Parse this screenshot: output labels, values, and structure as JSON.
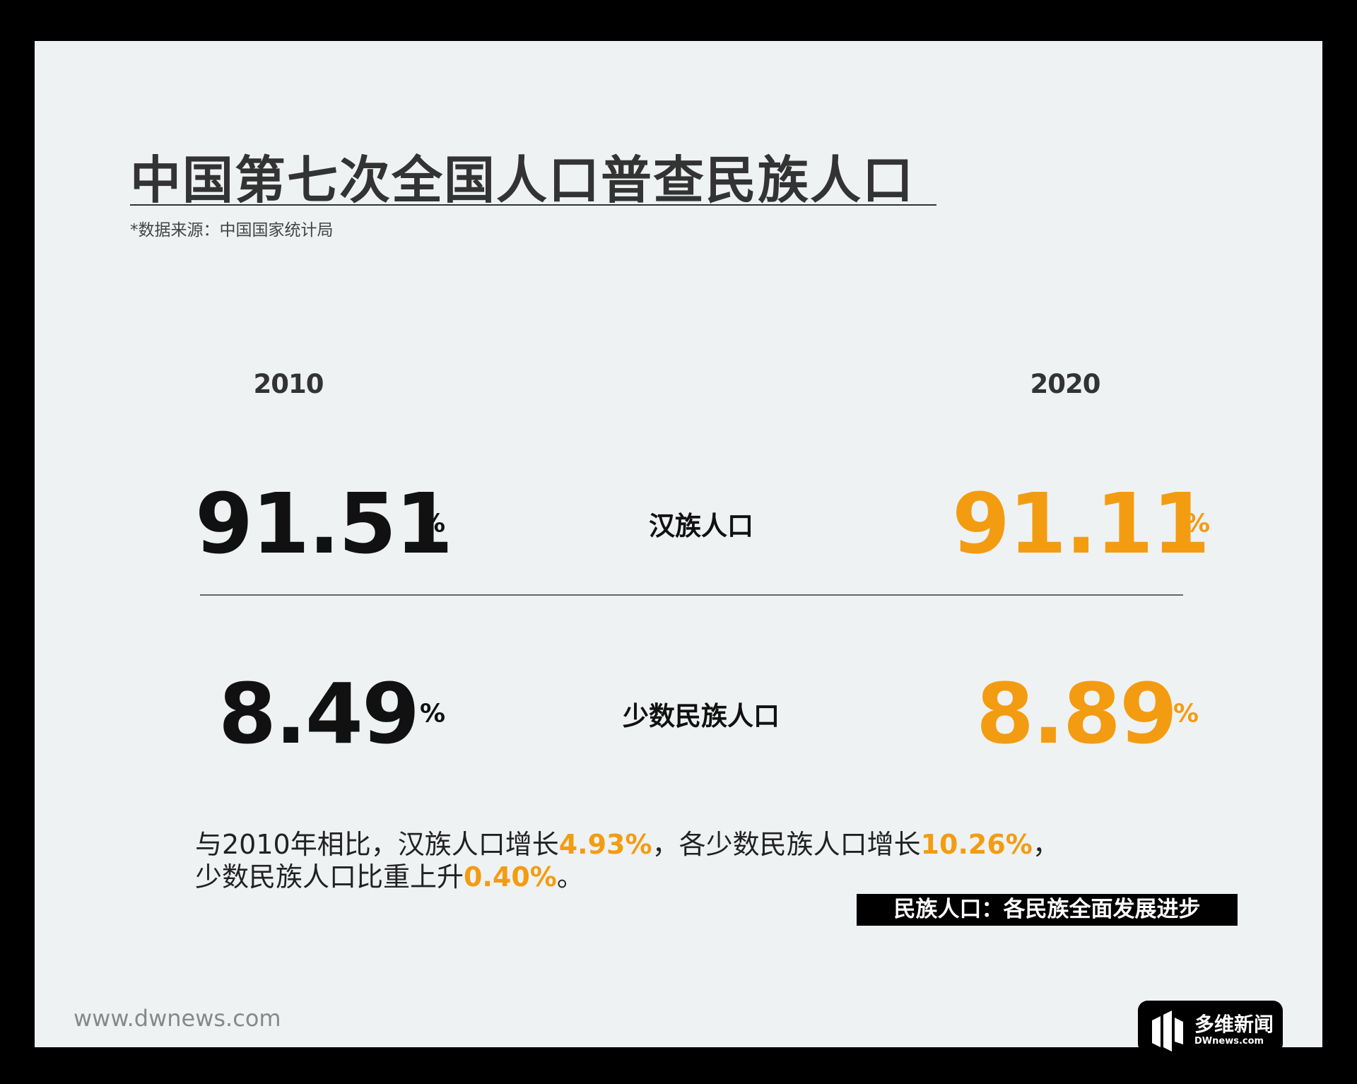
{
  "header": {
    "title": "中国第七次全国人口普查民族人口",
    "source": "*数据来源：中国国家统计局"
  },
  "years": [
    "2010",
    "2020"
  ],
  "rows": [
    {
      "label": "汉族人口",
      "values": [
        "91.51",
        "91.11"
      ],
      "unit": "%"
    },
    {
      "label": "少数民族人口",
      "values": [
        "8.49",
        "8.89"
      ],
      "unit": "%"
    }
  ],
  "note": {
    "lines": [
      [
        {
          "text": "与2010年相比，汉族人口增长",
          "highlight": false
        },
        {
          "text": "4.93%",
          "highlight": true
        },
        {
          "text": "，各少数民族人口增长",
          "highlight": false
        },
        {
          "text": "10.26%",
          "highlight": true
        },
        {
          "text": "，",
          "highlight": false
        }
      ],
      [
        {
          "text": "少数民族人口比重上升",
          "highlight": false
        },
        {
          "text": "0.40%",
          "highlight": true
        },
        {
          "text": "。",
          "highlight": false
        }
      ]
    ]
  },
  "tag": "民族人口：各民族全面发展进步",
  "footer": {
    "site": "www.dwnews.com",
    "logo_name": "多维新闻",
    "logo_domain": "DWnews.com"
  }
}
